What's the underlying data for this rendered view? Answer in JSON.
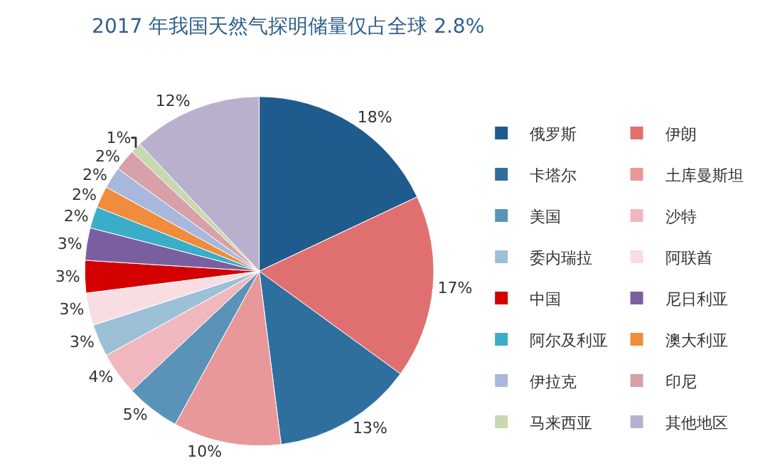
{
  "chart_data": {
    "type": "pie",
    "title": "2017 年我国天然气探明储量仅占全球 2.8%",
    "categories": [
      "俄罗斯",
      "伊朗",
      "卡塔尔",
      "土库曼斯坦",
      "美国",
      "沙特",
      "委内瑞拉",
      "阿联酋",
      "中国",
      "尼日利亚",
      "阿尔及利亚",
      "澳大利亚",
      "伊拉克",
      "印尼",
      "马来西亚",
      "其他地区"
    ],
    "values": [
      18,
      17,
      13,
      10,
      5,
      4,
      3,
      3,
      3,
      3,
      2,
      2,
      2,
      2,
      1,
      12
    ],
    "value_labels": [
      "18%",
      "17%",
      "13%",
      "10%",
      "5%",
      "4%",
      "3%",
      "3%",
      "3%",
      "3%",
      "2%",
      "2%",
      "2%",
      "2%",
      "1%",
      "12%"
    ],
    "colors": [
      "#1f5b8c",
      "#e07070",
      "#2e6f9e",
      "#e89898",
      "#5b93b8",
      "#f0b8be",
      "#9cc0d6",
      "#f8dde2",
      "#d40000",
      "#7a5fa0",
      "#3aaec8",
      "#f08c3c",
      "#a8b8dc",
      "#d8a0a8",
      "#c8d8b0",
      "#b8b0cc"
    ],
    "legend": "right"
  }
}
